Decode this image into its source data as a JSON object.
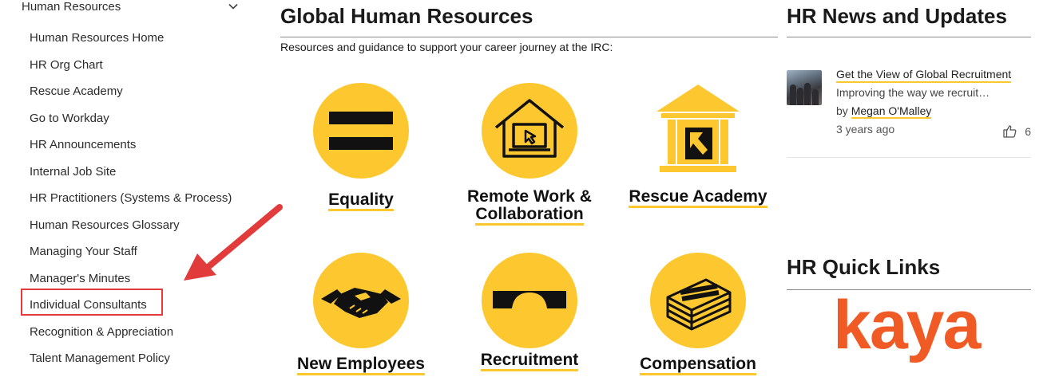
{
  "sidebar": {
    "section_title": "Human Resources",
    "items": [
      "Human Resources Home",
      "HR Org Chart",
      "Rescue Academy",
      "Go to Workday",
      "HR Announcements",
      "Internal Job Site",
      "HR Practitioners (Systems & Process)",
      "Human Resources Glossary",
      "Managing Your Staff",
      "Manager's Minutes",
      "Individual Consultants",
      "Recognition & Appreciation",
      "Talent Management Policy"
    ],
    "highlighted_item": "Individual Consultants"
  },
  "main": {
    "title": "Global Human Resources",
    "subtitle": "Resources and guidance to support your career journey at the IRC:",
    "tiles": [
      {
        "label": "Equality",
        "icon": "equality-icon"
      },
      {
        "label_line1": "Remote Work &",
        "label_line2": "Collaboration",
        "icon": "house-laptop-icon"
      },
      {
        "label": "Rescue Academy",
        "icon": "academy-building-icon"
      },
      {
        "label": "New Employees",
        "icon": "handshake-icon"
      },
      {
        "label": "Recruitment",
        "icon": "bridge-icon"
      },
      {
        "label": "Compensation",
        "icon": "money-stack-icon"
      }
    ]
  },
  "news": {
    "title": "HR News and Updates",
    "item": {
      "headline": "Get the View of Global Recruitment",
      "excerpt": "Improving the way we recruit…",
      "by_prefix": "by",
      "author": "Megan O'Malley",
      "time": "3 years ago",
      "likes": "6"
    }
  },
  "quick_links": {
    "title": "HR Quick Links",
    "logo_text": "kaya"
  },
  "colors": {
    "accent_yellow": "#fdc82f",
    "annotation_red": "#e23b3b",
    "kaya_orange": "#f05a24"
  }
}
